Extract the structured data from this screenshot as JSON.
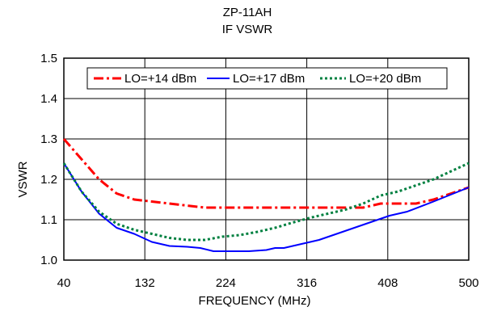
{
  "chart_data": {
    "type": "line",
    "title": "ZP-11AH",
    "subtitle": "IF VSWR",
    "xlabel": "FREQUENCY (MHz)",
    "ylabel": "VSWR",
    "xlim": [
      40,
      500
    ],
    "ylim": [
      1.0,
      1.5
    ],
    "x_ticks": [
      "40",
      "132",
      "224",
      "316",
      "408",
      "500"
    ],
    "y_ticks": [
      "1.0",
      "1.1",
      "1.2",
      "1.3",
      "1.4",
      "1.5"
    ],
    "grid": true,
    "legend_position": "top",
    "series": [
      {
        "name": "LO=+14 dBm",
        "color": "#ff0000",
        "dash": "dash",
        "x": [
          40,
          60,
          80,
          100,
          120,
          140,
          160,
          180,
          200,
          240,
          280,
          320,
          360,
          380,
          400,
          420,
          440,
          460,
          480,
          500
        ],
        "y": [
          1.3,
          1.25,
          1.2,
          1.165,
          1.15,
          1.145,
          1.14,
          1.135,
          1.13,
          1.13,
          1.13,
          1.13,
          1.13,
          1.13,
          1.14,
          1.14,
          1.14,
          1.15,
          1.165,
          1.18
        ]
      },
      {
        "name": "LO=+17 dBm",
        "color": "#0000ff",
        "dash": "solid",
        "x": [
          40,
          60,
          80,
          100,
          120,
          140,
          160,
          180,
          195,
          210,
          230,
          250,
          270,
          280,
          290,
          310,
          330,
          350,
          370,
          390,
          410,
          430,
          460,
          500
        ],
        "y": [
          1.24,
          1.17,
          1.115,
          1.08,
          1.065,
          1.045,
          1.035,
          1.033,
          1.03,
          1.022,
          1.022,
          1.022,
          1.025,
          1.03,
          1.03,
          1.04,
          1.05,
          1.065,
          1.08,
          1.095,
          1.11,
          1.12,
          1.145,
          1.18
        ]
      },
      {
        "name": "LO=+20 dBm",
        "color": "#008040",
        "dash": "dot",
        "x": [
          40,
          60,
          80,
          100,
          120,
          140,
          160,
          180,
          200,
          220,
          240,
          260,
          280,
          300,
          320,
          340,
          360,
          380,
          400,
          420,
          440,
          460,
          480,
          500
        ],
        "y": [
          1.24,
          1.17,
          1.12,
          1.09,
          1.075,
          1.065,
          1.055,
          1.05,
          1.05,
          1.058,
          1.062,
          1.07,
          1.08,
          1.093,
          1.105,
          1.115,
          1.125,
          1.14,
          1.16,
          1.17,
          1.185,
          1.2,
          1.22,
          1.24
        ]
      }
    ]
  }
}
